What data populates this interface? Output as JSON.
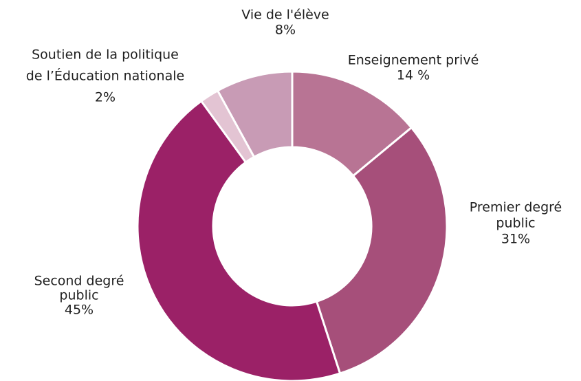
{
  "chart_data": {
    "type": "donut",
    "categories": [
      [
        "Enseignement privé"
      ],
      [
        "Premier degré",
        "public"
      ],
      [
        "Second degré",
        "public"
      ],
      [
        "Soutien de la politique",
        "de l’Éducation nationale"
      ],
      [
        "Vie de l'élève"
      ]
    ],
    "values": [
      14,
      31,
      45,
      2,
      8
    ],
    "value_labels": [
      "14 %",
      "31%",
      "45%",
      "2%",
      "8%"
    ],
    "colors": [
      "#b87494",
      "#a64f7a",
      "#9b2167",
      "#e3c4d3",
      "#c89bb5"
    ]
  }
}
